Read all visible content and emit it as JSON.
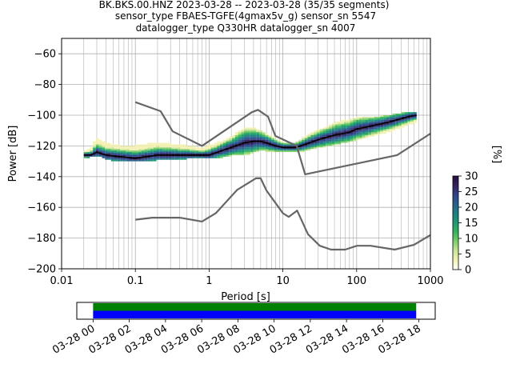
{
  "header": {
    "line1": "BK.BKS.00.HNZ   2023-03-28 -- 2023-03-28  (35/35 segments)",
    "line2": "sensor_type FBAES-TGFE(4gmax5v_g) sensor_sn 5547",
    "line3": "datalogger_type Q330HR datalogger_sn 4007"
  },
  "chart_data": [
    {
      "type": "heatmap",
      "title": "",
      "xlabel": "Period [s]",
      "ylabel": "Power [dB]",
      "xscale": "log",
      "xlim": [
        0.01,
        1000
      ],
      "ylim": [
        -200,
        -50
      ],
      "grid": true,
      "x_ticks": [
        {
          "value": 0.01,
          "label": "0.01"
        },
        {
          "value": 0.1,
          "label": "0.1"
        },
        {
          "value": 1,
          "label": "1"
        },
        {
          "value": 10,
          "label": "10"
        },
        {
          "value": 100,
          "label": "100"
        },
        {
          "value": 1000,
          "label": "1000"
        }
      ],
      "y_ticks": [
        {
          "value": -60,
          "label": "−60"
        },
        {
          "value": -80,
          "label": "−80"
        },
        {
          "value": -100,
          "label": "−100"
        },
        {
          "value": -120,
          "label": "−120"
        },
        {
          "value": -140,
          "label": "−140"
        },
        {
          "value": -160,
          "label": "−160"
        },
        {
          "value": -180,
          "label": "−180"
        },
        {
          "value": -200,
          "label": "−200"
        }
      ],
      "colorbar": {
        "label": "[%]",
        "range": [
          0,
          30
        ],
        "ticks": [
          {
            "value": 0,
            "label": "0"
          },
          {
            "value": 5,
            "label": "5"
          },
          {
            "value": 10,
            "label": "10"
          },
          {
            "value": 15,
            "label": "15"
          },
          {
            "value": 20,
            "label": "20"
          },
          {
            "value": 25,
            "label": "25"
          },
          {
            "value": 30,
            "label": "30"
          }
        ],
        "colormap": [
          "#ffffff",
          "#f3f2b4",
          "#c9e59a",
          "#7fce6c",
          "#36b45e",
          "#1d9a73",
          "#1f7f85",
          "#28618d",
          "#33438b",
          "#35225c",
          "#260f3e"
        ]
      },
      "series": [
        {
          "role": "mode",
          "color": "#000000",
          "x": [
            0.02,
            0.025,
            0.03,
            0.04,
            0.06,
            0.1,
            0.2,
            0.3,
            0.5,
            0.8,
            1.0,
            1.5,
            2,
            3,
            4,
            5,
            6,
            8,
            10,
            15,
            20,
            30,
            50,
            80,
            100,
            200,
            300,
            500,
            650
          ],
          "y": [
            -126,
            -126,
            -124,
            -126,
            -127,
            -128,
            -126,
            -126,
            -126,
            -126,
            -126,
            -123,
            -121,
            -118,
            -117,
            -117,
            -118,
            -120,
            -121,
            -121,
            -119,
            -116,
            -113,
            -111,
            -109,
            -106,
            -104,
            -101,
            -100
          ]
        },
        {
          "role": "nhnm",
          "color": "#666666",
          "x": [
            0.1,
            0.22,
            0.32,
            0.8,
            3.8,
            4.6,
            6.3,
            7.9,
            15.4,
            20,
            354,
            1000
          ],
          "y": [
            -91.5,
            -97.4,
            -110.5,
            -120,
            -98,
            -96.5,
            -101,
            -113.5,
            -120,
            -138.5,
            -126,
            -112
          ]
        },
        {
          "role": "nlnm",
          "color": "#666666",
          "x": [
            0.1,
            0.17,
            0.4,
            0.8,
            1.24,
            2.4,
            4.3,
            5,
            6,
            10,
            12,
            15.6,
            21.9,
            31.6,
            45,
            70,
            101,
            154,
            328,
            600,
            1000
          ],
          "y": [
            -168,
            -166.7,
            -166.7,
            -169.2,
            -163.7,
            -148.6,
            -141.1,
            -141.1,
            -149,
            -163.8,
            -166.2,
            -162.1,
            -177.5,
            -185,
            -187.5,
            -187.5,
            -185,
            -185,
            -187.5,
            -184.4,
            -178
          ]
        },
        {
          "role": "percentile-band",
          "x": [
            0.02,
            0.025,
            0.03,
            0.04,
            0.06,
            0.1,
            0.2,
            0.3,
            0.5,
            0.8,
            1.0,
            1.5,
            2,
            3,
            4,
            5,
            6,
            8,
            10,
            15,
            20,
            30,
            50,
            80,
            100,
            200,
            300,
            500,
            650
          ],
          "low": [
            -128,
            -127,
            -126,
            -128,
            -130,
            -130,
            -129,
            -129,
            -128,
            -128,
            -128,
            -127,
            -126,
            -126,
            -124,
            -123,
            -123,
            -124,
            -124,
            -124,
            -123,
            -121,
            -119,
            -117,
            -116,
            -112,
            -110,
            -106,
            -104
          ],
          "high": [
            -124,
            -122,
            -115,
            -118,
            -120,
            -120,
            -118,
            -119,
            -120,
            -122,
            -120,
            -117,
            -114,
            -109,
            -108,
            -110,
            -112,
            -116,
            -118,
            -118,
            -114,
            -110,
            -105,
            -103,
            -102,
            -101,
            -100,
            -98,
            -98
          ]
        }
      ]
    },
    {
      "type": "timeline",
      "x_ticks": [
        {
          "value": 0,
          "label": "03-28 00"
        },
        {
          "value": 2,
          "label": "03-28 02"
        },
        {
          "value": 4,
          "label": "03-28 04"
        },
        {
          "value": 6,
          "label": "03-28 06"
        },
        {
          "value": 8,
          "label": "03-28 08"
        },
        {
          "value": 10,
          "label": "03-28 10"
        },
        {
          "value": 12,
          "label": "03-28 12"
        },
        {
          "value": 14,
          "label": "03-28 14"
        },
        {
          "value": 16,
          "label": "03-28 16"
        },
        {
          "value": 18,
          "label": "03-28 18"
        }
      ],
      "xlim": [
        -0.9,
        18.9
      ],
      "bars": [
        {
          "role": "data-available",
          "color": "#008000",
          "start": 0,
          "end": 17.85
        },
        {
          "role": "psd-segments",
          "color": "#0000ff",
          "start": 0,
          "end": 17.85
        }
      ]
    }
  ]
}
